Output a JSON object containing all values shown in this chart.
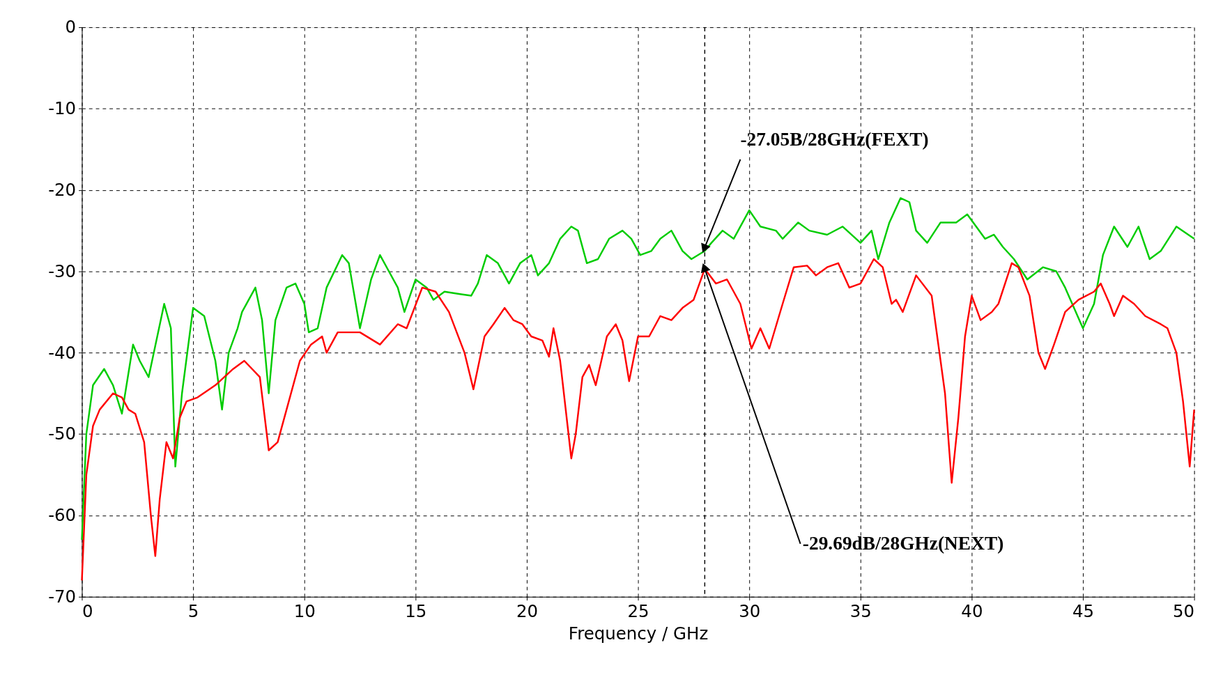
{
  "chart_data": {
    "type": "line",
    "xlabel": "Frequency / GHz",
    "xlim": [
      0,
      50
    ],
    "ylim": [
      -70,
      0
    ],
    "xticks": [
      0,
      5,
      10,
      15,
      20,
      25,
      30,
      35,
      40,
      45,
      50
    ],
    "yticks": [
      0,
      -10,
      -20,
      -30,
      -40,
      -50,
      -60,
      -70
    ],
    "grid": true,
    "line_style": "solid",
    "marker": "none",
    "ref_lines": [
      {
        "axis": "x",
        "value": 28,
        "color": "#000000",
        "line_style": "dashed"
      }
    ],
    "annotations": [
      {
        "text": "-27.05B/28GHz(FEXT)",
        "x": 28,
        "y": -27.05
      },
      {
        "text": "-29.69dB/28GHz(NEXT)",
        "x": 28,
        "y": -29.69
      }
    ],
    "series": [
      {
        "color": "#00cc00",
        "x": [
          0,
          0.2,
          0.5,
          1,
          1.4,
          1.8,
          2.3,
          2.6,
          3.0,
          3.7,
          4.0,
          4.2,
          4.5,
          5.0,
          5.5,
          6.0,
          6.3,
          6.6,
          7,
          7.2,
          7.8,
          8.1,
          8.4,
          8.7,
          9.2,
          9.6,
          10,
          10.2,
          10.6,
          11.0,
          11.7,
          12.0,
          12.5,
          13.0,
          13.4,
          13.8,
          14.2,
          14.5,
          15,
          15.5,
          15.8,
          16.3,
          17,
          17.5,
          17.8,
          18.2,
          18.7,
          19.2,
          19.7,
          20.2,
          20.5,
          21,
          21.5,
          22,
          22.3,
          22.7,
          23.2,
          23.7,
          24.3,
          24.7,
          25.1,
          25.6,
          26.0,
          26.5,
          27.0,
          27.4,
          28,
          28.3,
          28.8,
          29.3,
          30,
          30.5,
          31.2,
          31.5,
          32.2,
          32.7,
          33.5,
          34.2,
          35,
          35.5,
          35.8,
          36.3,
          36.8,
          37.2,
          37.5,
          38.0,
          38.6,
          39.3,
          39.8,
          40.2,
          40.6,
          41.0,
          41.4,
          41.9,
          42.5,
          43.2,
          43.8,
          44.2,
          45,
          45.5,
          45.9,
          46.4,
          47.0,
          47.5,
          48,
          48.5,
          49.2,
          50
        ],
        "values": [
          -63,
          -50,
          -44,
          -42,
          -44,
          -47.5,
          -39,
          -41,
          -43,
          -34,
          -37,
          -54,
          -45,
          -34.5,
          -35.5,
          -41,
          -47,
          -40,
          -37,
          -35,
          -32,
          -36,
          -45,
          -36,
          -32,
          -31.5,
          -34,
          -37.5,
          -37,
          -32,
          -28,
          -29,
          -37,
          -31,
          -28,
          -30,
          -32,
          -35,
          -31,
          -32,
          -33.5,
          -32.5,
          -32.8,
          -33,
          -31.5,
          -28,
          -29,
          -31.5,
          -29,
          -28,
          -30.5,
          -29,
          -26,
          -24.5,
          -25,
          -29,
          -28.5,
          -26,
          -25,
          -26,
          -28,
          -27.5,
          -26,
          -25,
          -27.5,
          -28.5,
          -27.5,
          -26.5,
          -25,
          -26,
          -22.5,
          -24.5,
          -25,
          -26,
          -24,
          -25,
          -25.5,
          -24.5,
          -26.5,
          -25,
          -28.5,
          -24,
          -21,
          -21.5,
          -25,
          -26.5,
          -24,
          -24,
          -23,
          -24.5,
          -26,
          -25.5,
          -27,
          -28.5,
          -31,
          -29.5,
          -30,
          -32,
          -37,
          -34,
          -28,
          -24.5,
          -27,
          -24.5,
          -28.5,
          -27.5,
          -24.5,
          -26
        ]
      },
      {
        "color": "#ff0000",
        "x": [
          0,
          0.2,
          0.5,
          0.8,
          1.4,
          1.8,
          2.1,
          2.4,
          2.8,
          3.1,
          3.3,
          3.5,
          3.8,
          4.1,
          4.4,
          4.7,
          5.2,
          6.0,
          6.8,
          7.3,
          8.0,
          8.4,
          8.8,
          9.2,
          9.8,
          10.3,
          10.8,
          11.0,
          11.5,
          12.5,
          13.4,
          14.2,
          14.6,
          15.3,
          15.9,
          16.5,
          17.2,
          17.6,
          18.1,
          18.5,
          19,
          19.4,
          19.8,
          20.2,
          20.7,
          21.0,
          21.2,
          21.5,
          22,
          22.2,
          22.5,
          22.8,
          23.1,
          23.6,
          24.0,
          24.3,
          24.6,
          25.0,
          25.5,
          26,
          26.5,
          27,
          27.5,
          28,
          28.5,
          29.0,
          29.6,
          30.1,
          30.5,
          30.9,
          31.5,
          32,
          32.6,
          33.0,
          33.5,
          34,
          34.5,
          35,
          35.6,
          36,
          36.4,
          36.6,
          36.9,
          37.5,
          38.2,
          38.8,
          39.1,
          39.4,
          39.7,
          40.0,
          40.4,
          40.9,
          41.2,
          41.8,
          42.1,
          42.6,
          43.0,
          43.3,
          43.7,
          44.2,
          44.8,
          45.5,
          45.8,
          46.2,
          46.4,
          46.8,
          47.3,
          47.8,
          48.5,
          48.8,
          49.2,
          49.5,
          49.8,
          50
        ],
        "values": [
          -68,
          -55,
          -49,
          -47,
          -45,
          -45.5,
          -47,
          -47.5,
          -51,
          -60,
          -65,
          -58,
          -51,
          -53,
          -48,
          -46,
          -45.5,
          -44,
          -42,
          -41,
          -43,
          -52,
          -51,
          -47,
          -41,
          -39,
          -38,
          -40,
          -37.5,
          -37.5,
          -39,
          -36.5,
          -37,
          -32,
          -32.5,
          -35,
          -40,
          -44.5,
          -38,
          -36.5,
          -34.5,
          -36,
          -36.5,
          -38,
          -38.5,
          -40.5,
          -37,
          -41,
          -53,
          -50,
          -43,
          -41.5,
          -44,
          -38,
          -36.5,
          -38.5,
          -43.5,
          -38,
          -38,
          -35.5,
          -36,
          -34.5,
          -33.5,
          -29.7,
          -31.5,
          -31,
          -34,
          -39.5,
          -37,
          -39.5,
          -34,
          -29.5,
          -29.3,
          -30.5,
          -29.5,
          -29,
          -32,
          -31.5,
          -28.5,
          -29.5,
          -34,
          -33.5,
          -35,
          -30.5,
          -33,
          -45,
          -56,
          -48,
          -38,
          -33,
          -36,
          -35,
          -34,
          -29,
          -29.5,
          -33,
          -40,
          -42,
          -39,
          -35,
          -33.5,
          -32.5,
          -31.5,
          -34,
          -35.5,
          -33,
          -34,
          -35.5,
          -36.5,
          -37,
          -40,
          -46,
          -54,
          -47
        ]
      }
    ]
  }
}
